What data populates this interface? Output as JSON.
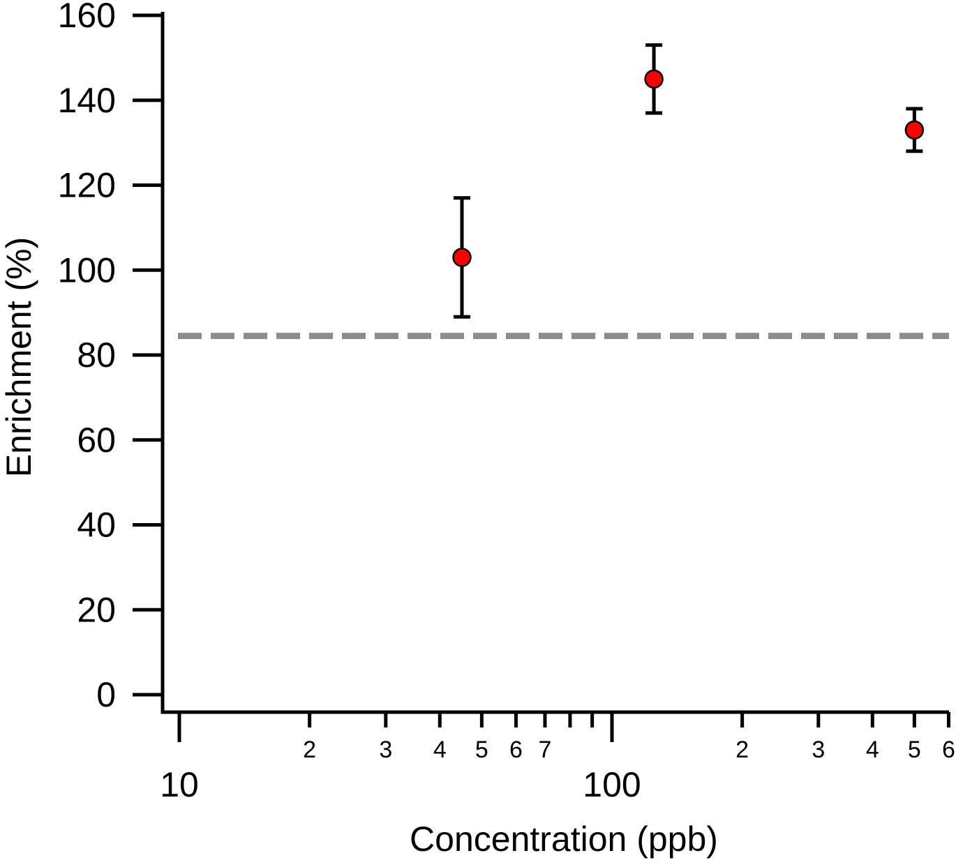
{
  "chart_data": {
    "type": "scatter",
    "title": "",
    "xlabel": "Concentration (ppb)",
    "ylabel": "Enrichment (%)",
    "x_scale": "log",
    "xlim": [
      9.6,
      610
    ],
    "ylim": [
      0,
      160
    ],
    "x_major_ticks": [
      {
        "value": 10,
        "label": "10"
      },
      {
        "value": 100,
        "label": "100"
      }
    ],
    "x_minor_ticks": [
      {
        "value": 20,
        "label": "2"
      },
      {
        "value": 30,
        "label": "3"
      },
      {
        "value": 40,
        "label": "4"
      },
      {
        "value": 50,
        "label": "5"
      },
      {
        "value": 60,
        "label": "6"
      },
      {
        "value": 70,
        "label": "7"
      },
      {
        "value": 80,
        "label": ""
      },
      {
        "value": 90,
        "label": ""
      },
      {
        "value": 200,
        "label": "2"
      },
      {
        "value": 300,
        "label": "3"
      },
      {
        "value": 400,
        "label": "4"
      },
      {
        "value": 500,
        "label": "5"
      },
      {
        "value": 600,
        "label": "6"
      }
    ],
    "y_ticks": [
      0,
      20,
      40,
      60,
      80,
      100,
      120,
      140,
      160
    ],
    "series": [
      {
        "color": "#ff0000",
        "points": [
          {
            "x": 45,
            "y": 103,
            "err_low": 89,
            "err_high": 117
          },
          {
            "x": 125,
            "y": 145,
            "err_low": 137,
            "err_high": 153
          },
          {
            "x": 500,
            "y": 133,
            "err_low": 128,
            "err_high": 138
          }
        ]
      }
    ],
    "reference_line": {
      "y": 84.5,
      "style": "dashed",
      "color": "#8c8c8c"
    },
    "grid": false,
    "legend": "none"
  }
}
